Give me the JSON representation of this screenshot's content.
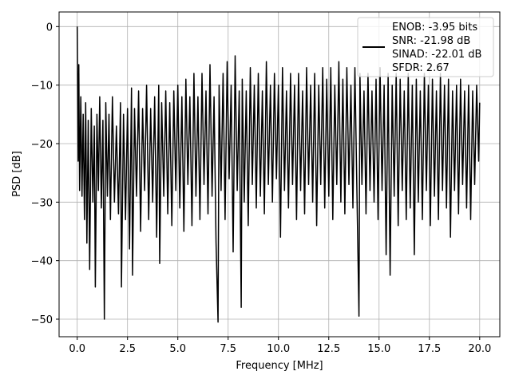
{
  "chart_data": {
    "type": "line",
    "xlabel": "Frequency [MHz]",
    "ylabel": "PSD [dB]",
    "xlim": [
      -0.9,
      21.0
    ],
    "ylim": [
      -53.0,
      2.5
    ],
    "xticks": [
      0.0,
      2.5,
      5.0,
      7.5,
      10.0,
      12.5,
      15.0,
      17.5,
      20.0
    ],
    "xtick_labels": [
      "0.0",
      "2.5",
      "5.0",
      "7.5",
      "10.0",
      "12.5",
      "15.0",
      "17.5",
      "20.0"
    ],
    "yticks": [
      0,
      -10,
      -20,
      -30,
      -40,
      -50
    ],
    "ytick_labels": [
      "0",
      "−10",
      "−20",
      "−30",
      "−40",
      "−50"
    ],
    "grid": true,
    "legend_position": "top-right",
    "series": [
      {
        "name": "ENOB: -3.95 bits\nSNR: -21.98 dB\nSINAD: -22.01 dB\nSFDR: 2.67",
        "color": "#000000",
        "description": "noise floor around -20 dB",
        "points": [
          [
            0.0,
            0
          ],
          [
            0.05,
            -23
          ],
          [
            0.08,
            -6.5
          ],
          [
            0.12,
            -28
          ],
          [
            0.18,
            -12
          ],
          [
            0.24,
            -29
          ],
          [
            0.3,
            -15
          ],
          [
            0.36,
            -33
          ],
          [
            0.42,
            -13
          ],
          [
            0.48,
            -37
          ],
          [
            0.55,
            -16
          ],
          [
            0.62,
            -41.5
          ],
          [
            0.7,
            -14
          ],
          [
            0.78,
            -30
          ],
          [
            0.85,
            -17
          ],
          [
            0.9,
            -44.5
          ],
          [
            0.98,
            -15
          ],
          [
            1.05,
            -28
          ],
          [
            1.12,
            -12
          ],
          [
            1.2,
            -31
          ],
          [
            1.28,
            -16
          ],
          [
            1.35,
            -50
          ],
          [
            1.42,
            -13
          ],
          [
            1.5,
            -29
          ],
          [
            1.58,
            -15
          ],
          [
            1.65,
            -33
          ],
          [
            1.75,
            -12
          ],
          [
            1.85,
            -30
          ],
          [
            1.95,
            -17
          ],
          [
            2.05,
            -32
          ],
          [
            2.15,
            -13
          ],
          [
            2.2,
            -44.5
          ],
          [
            2.3,
            -15
          ],
          [
            2.4,
            -33
          ],
          [
            2.5,
            -14
          ],
          [
            2.6,
            -38
          ],
          [
            2.7,
            -10.5
          ],
          [
            2.75,
            -42.5
          ],
          [
            2.85,
            -14
          ],
          [
            2.95,
            -29
          ],
          [
            3.05,
            -11
          ],
          [
            3.15,
            -35
          ],
          [
            3.25,
            -14
          ],
          [
            3.35,
            -28
          ],
          [
            3.45,
            -10
          ],
          [
            3.55,
            -33
          ],
          [
            3.65,
            -14
          ],
          [
            3.75,
            -30
          ],
          [
            3.85,
            -12
          ],
          [
            3.95,
            -36
          ],
          [
            4.05,
            -10
          ],
          [
            4.1,
            -40.5
          ],
          [
            4.2,
            -13
          ],
          [
            4.3,
            -29
          ],
          [
            4.4,
            -11
          ],
          [
            4.5,
            -32
          ],
          [
            4.6,
            -13
          ],
          [
            4.7,
            -34
          ],
          [
            4.8,
            -11
          ],
          [
            4.9,
            -28
          ],
          [
            5.0,
            -10
          ],
          [
            5.1,
            -31
          ],
          [
            5.2,
            -12
          ],
          [
            5.3,
            -35
          ],
          [
            5.4,
            -9
          ],
          [
            5.5,
            -27
          ],
          [
            5.6,
            -12
          ],
          [
            5.7,
            -34
          ],
          [
            5.8,
            -8
          ],
          [
            5.9,
            -29
          ],
          [
            6.0,
            -12
          ],
          [
            6.1,
            -33
          ],
          [
            6.2,
            -8
          ],
          [
            6.3,
            -27
          ],
          [
            6.4,
            -11
          ],
          [
            6.5,
            -32
          ],
          [
            6.6,
            -6.5
          ],
          [
            6.7,
            -29
          ],
          [
            6.8,
            -12
          ],
          [
            6.9,
            -37
          ],
          [
            7.0,
            -50.5
          ],
          [
            7.05,
            -10
          ],
          [
            7.15,
            -28
          ],
          [
            7.25,
            -8
          ],
          [
            7.35,
            -33
          ],
          [
            7.45,
            -6
          ],
          [
            7.55,
            -26
          ],
          [
            7.65,
            -10
          ],
          [
            7.75,
            -38.5
          ],
          [
            7.85,
            -5
          ],
          [
            7.95,
            -28
          ],
          [
            8.05,
            -11
          ],
          [
            8.15,
            -48
          ],
          [
            8.2,
            -9
          ],
          [
            8.3,
            -30
          ],
          [
            8.4,
            -11
          ],
          [
            8.5,
            -34
          ],
          [
            8.6,
            -7
          ],
          [
            8.7,
            -27
          ],
          [
            8.8,
            -10
          ],
          [
            8.9,
            -31
          ],
          [
            9.0,
            -8
          ],
          [
            9.1,
            -29
          ],
          [
            9.2,
            -11
          ],
          [
            9.3,
            -32
          ],
          [
            9.4,
            -6
          ],
          [
            9.5,
            -27
          ],
          [
            9.6,
            -10
          ],
          [
            9.7,
            -30
          ],
          [
            9.8,
            -8
          ],
          [
            9.9,
            -26
          ],
          [
            10.0,
            -10
          ],
          [
            10.1,
            -36
          ],
          [
            10.2,
            -7
          ],
          [
            10.3,
            -28
          ],
          [
            10.4,
            -11
          ],
          [
            10.5,
            -31
          ],
          [
            10.6,
            -8
          ],
          [
            10.7,
            -27
          ],
          [
            10.8,
            -10
          ],
          [
            10.9,
            -33
          ],
          [
            11.0,
            -8
          ],
          [
            11.1,
            -28
          ],
          [
            11.2,
            -11
          ],
          [
            11.3,
            -32
          ],
          [
            11.4,
            -7
          ],
          [
            11.5,
            -27
          ],
          [
            11.6,
            -10
          ],
          [
            11.7,
            -30
          ],
          [
            11.8,
            -8
          ],
          [
            11.9,
            -34
          ],
          [
            12.0,
            -10
          ],
          [
            12.1,
            -27
          ],
          [
            12.2,
            -7
          ],
          [
            12.3,
            -31
          ],
          [
            12.4,
            -9
          ],
          [
            12.5,
            -29
          ],
          [
            12.6,
            -7
          ],
          [
            12.7,
            -33
          ],
          [
            12.8,
            -10
          ],
          [
            12.9,
            -27
          ],
          [
            13.0,
            -6
          ],
          [
            13.1,
            -30
          ],
          [
            13.2,
            -9
          ],
          [
            13.3,
            -32
          ],
          [
            13.4,
            -7
          ],
          [
            13.5,
            -27
          ],
          [
            13.6,
            -10
          ],
          [
            13.7,
            -31
          ],
          [
            13.8,
            -7
          ],
          [
            13.9,
            -28
          ],
          [
            14.0,
            -49.5
          ],
          [
            14.05,
            -8
          ],
          [
            14.15,
            -27
          ],
          [
            14.25,
            -11
          ],
          [
            14.35,
            -32
          ],
          [
            14.45,
            -8
          ],
          [
            14.55,
            -28
          ],
          [
            14.65,
            -11
          ],
          [
            14.75,
            -30
          ],
          [
            14.85,
            -9
          ],
          [
            14.95,
            -33
          ],
          [
            15.05,
            -7
          ],
          [
            15.15,
            -28
          ],
          [
            15.25,
            -10
          ],
          [
            15.35,
            -39
          ],
          [
            15.45,
            -8
          ],
          [
            15.55,
            -42.5
          ],
          [
            15.65,
            -10
          ],
          [
            15.75,
            -29
          ],
          [
            15.85,
            -8
          ],
          [
            15.95,
            -34
          ],
          [
            16.05,
            -9
          ],
          [
            16.15,
            -28
          ],
          [
            16.25,
            -11
          ],
          [
            16.35,
            -33
          ],
          [
            16.45,
            -8
          ],
          [
            16.55,
            -31
          ],
          [
            16.65,
            -10
          ],
          [
            16.75,
            -39
          ],
          [
            16.85,
            -9
          ],
          [
            16.95,
            -30
          ],
          [
            17.05,
            -11
          ],
          [
            17.15,
            -33
          ],
          [
            17.25,
            -8
          ],
          [
            17.35,
            -28
          ],
          [
            17.45,
            -10
          ],
          [
            17.55,
            -34
          ],
          [
            17.65,
            -9
          ],
          [
            17.75,
            -29
          ],
          [
            17.85,
            -11
          ],
          [
            17.95,
            -33
          ],
          [
            18.05,
            -8
          ],
          [
            18.15,
            -28
          ],
          [
            18.25,
            -10
          ],
          [
            18.35,
            -31
          ],
          [
            18.45,
            -9
          ],
          [
            18.55,
            -36
          ],
          [
            18.65,
            -11
          ],
          [
            18.75,
            -28
          ],
          [
            18.85,
            -10
          ],
          [
            18.95,
            -32
          ],
          [
            19.05,
            -9
          ],
          [
            19.15,
            -27
          ],
          [
            19.25,
            -11
          ],
          [
            19.35,
            -31
          ],
          [
            19.45,
            -10
          ],
          [
            19.55,
            -33
          ],
          [
            19.65,
            -11
          ],
          [
            19.75,
            -27
          ],
          [
            19.85,
            -10
          ],
          [
            19.95,
            -23
          ],
          [
            20.0,
            -13
          ]
        ]
      }
    ]
  }
}
